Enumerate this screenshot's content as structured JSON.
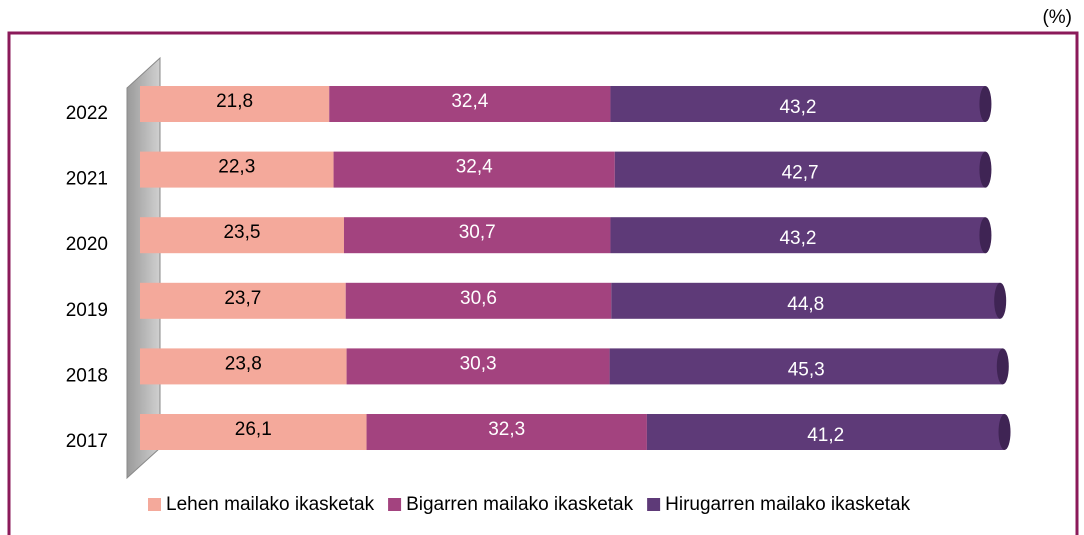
{
  "chart_data": {
    "type": "stacked-bar-horizontal",
    "unit": "(%)",
    "categories": [
      "2022",
      "2021",
      "2020",
      "2019",
      "2018",
      "2017"
    ],
    "series": [
      {
        "name": "Lehen mailako ikasketak",
        "color": "#f4a99b",
        "values": [
          21.8,
          22.3,
          23.5,
          23.7,
          23.8,
          26.1
        ],
        "value_labels": [
          "21,8",
          "22,3",
          "23,5",
          "23,7",
          "23,8",
          "26,1"
        ]
      },
      {
        "name": "Bigarren mailako ikasketak",
        "color": "#a3437f",
        "values": [
          32.4,
          32.4,
          30.7,
          30.6,
          30.3,
          32.3
        ],
        "value_labels": [
          "32,4",
          "32,4",
          "30,7",
          "30,6",
          "30,3",
          "32,3"
        ]
      },
      {
        "name": "Hirugarren mailako ikasketak",
        "color": "#5e3a78",
        "values": [
          43.2,
          42.7,
          43.2,
          44.8,
          45.3,
          41.2
        ],
        "value_labels": [
          "43,2",
          "42,7",
          "43,2",
          "44,8",
          "45,3",
          "41,2"
        ]
      }
    ],
    "xlim": [
      0,
      100
    ],
    "legend": "bottom"
  }
}
